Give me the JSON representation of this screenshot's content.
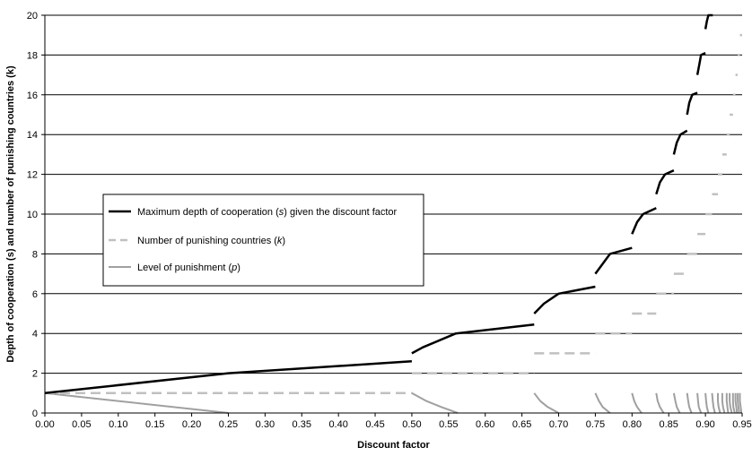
{
  "chart_data": {
    "type": "line",
    "xlabel": "Discount factor",
    "ylabel": "Depth of cooperation (s) and number of punishing countries (k)",
    "xlim": [
      0.0,
      0.95
    ],
    "ylim": [
      0,
      20
    ],
    "xticks": [
      0.0,
      0.05,
      0.1,
      0.15,
      0.2,
      0.25,
      0.3,
      0.35,
      0.4,
      0.45,
      0.5,
      0.55,
      0.6,
      0.65,
      0.7,
      0.75,
      0.8,
      0.85,
      0.9,
      0.95
    ],
    "xtick_labels": [
      "0.00",
      "0.05",
      "0.10",
      "0.15",
      "0.20",
      "0.25",
      "0.30",
      "0.35",
      "0.40",
      "0.45",
      "0.50",
      "0.55",
      "0.60",
      "0.65",
      "0.70",
      "0.75",
      "0.80",
      "0.85",
      "0.90",
      "0.95"
    ],
    "yticks": [
      0,
      2,
      4,
      6,
      8,
      10,
      12,
      14,
      16,
      18,
      20
    ],
    "ytick_labels": [
      "0",
      "2",
      "4",
      "6",
      "8",
      "10",
      "12",
      "14",
      "16",
      "18",
      "20"
    ],
    "grid": "horizontal",
    "legend_placement": "center-left",
    "legend": [
      {
        "pre": "Maximum depth of cooperation (",
        "var": "s",
        "post": ") given the discount factor"
      },
      {
        "pre": "Number of punishing countries (",
        "var": "k",
        "post": ")"
      },
      {
        "pre": "Level of punishment (",
        "var": "p",
        "post": ")"
      }
    ],
    "series": [
      {
        "key": "s",
        "style": "solid",
        "color": "#000000",
        "segments": [
          [
            [
              0.0,
              1.0
            ],
            [
              0.25,
              2.0
            ],
            [
              0.5,
              2.6
            ]
          ],
          [
            [
              0.5,
              3.0
            ],
            [
              0.515,
              3.3
            ],
            [
              0.56,
              4.0
            ],
            [
              0.6667,
              4.45
            ]
          ],
          [
            [
              0.6667,
              5.0
            ],
            [
              0.68,
              5.5
            ],
            [
              0.7,
              6.0
            ],
            [
              0.75,
              6.35
            ]
          ],
          [
            [
              0.75,
              7.0
            ],
            [
              0.76,
              7.5
            ],
            [
              0.77,
              8.0
            ],
            [
              0.8,
              8.3
            ]
          ],
          [
            [
              0.8,
              9.0
            ],
            [
              0.807,
              9.6
            ],
            [
              0.815,
              10.0
            ],
            [
              0.833,
              10.3
            ]
          ],
          [
            [
              0.833,
              11.0
            ],
            [
              0.838,
              11.6
            ],
            [
              0.845,
              12.0
            ],
            [
              0.857,
              12.2
            ]
          ],
          [
            [
              0.857,
              13.0
            ],
            [
              0.861,
              13.6
            ],
            [
              0.866,
              14.0
            ],
            [
              0.875,
              14.2
            ]
          ],
          [
            [
              0.875,
              15.0
            ],
            [
              0.878,
              15.6
            ],
            [
              0.882,
              16.0
            ],
            [
              0.889,
              16.1
            ]
          ],
          [
            [
              0.889,
              17.0
            ],
            [
              0.892,
              17.6
            ],
            [
              0.894,
              18.0
            ],
            [
              0.9,
              18.1
            ]
          ],
          [
            [
              0.9,
              19.3
            ],
            [
              0.902,
              19.7
            ],
            [
              0.904,
              20.0
            ],
            [
              0.91,
              20.0
            ]
          ]
        ]
      },
      {
        "key": "k",
        "style": "dashed",
        "color": "#c0c0c0",
        "segments": [
          [
            [
              0.0,
              1.0
            ],
            [
              0.5,
              1.0
            ]
          ],
          [
            [
              0.5,
              2.0
            ],
            [
              0.6667,
              2.0
            ]
          ],
          [
            [
              0.6667,
              3.0
            ],
            [
              0.75,
              3.0
            ]
          ],
          [
            [
              0.75,
              4.0
            ],
            [
              0.8,
              4.0
            ]
          ],
          [
            [
              0.8,
              5.0
            ],
            [
              0.833,
              5.0
            ]
          ],
          [
            [
              0.833,
              6.0
            ],
            [
              0.857,
              6.0
            ]
          ],
          [
            [
              0.857,
              7.0
            ],
            [
              0.875,
              7.0
            ]
          ],
          [
            [
              0.875,
              8.0
            ],
            [
              0.889,
              8.0
            ]
          ],
          [
            [
              0.889,
              9.0
            ],
            [
              0.9,
              9.0
            ]
          ],
          [
            [
              0.9,
              10.0
            ],
            [
              0.909,
              10.0
            ]
          ],
          [
            [
              0.909,
              11.0
            ],
            [
              0.917,
              11.0
            ]
          ],
          [
            [
              0.917,
              12.0
            ],
            [
              0.923,
              12.0
            ]
          ],
          [
            [
              0.923,
              13.0
            ],
            [
              0.929,
              13.0
            ]
          ],
          [
            [
              0.929,
              14.0
            ],
            [
              0.933,
              14.0
            ]
          ],
          [
            [
              0.933,
              15.0
            ],
            [
              0.9375,
              15.0
            ]
          ],
          [
            [
              0.9375,
              16.0
            ],
            [
              0.941,
              16.0
            ]
          ],
          [
            [
              0.941,
              17.0
            ],
            [
              0.944,
              17.0
            ]
          ],
          [
            [
              0.944,
              18.0
            ],
            [
              0.947,
              18.0
            ]
          ],
          [
            [
              0.947,
              19.0
            ],
            [
              0.95,
              19.0
            ]
          ]
        ]
      },
      {
        "key": "p",
        "style": "solid",
        "color": "#a0a0a0",
        "segments": [
          [
            [
              0.0,
              1.0
            ],
            [
              0.25,
              0.0
            ]
          ],
          [
            [
              0.5,
              1.0
            ],
            [
              0.52,
              0.6
            ],
            [
              0.54,
              0.3
            ],
            [
              0.5625,
              0.0
            ]
          ],
          [
            [
              0.6667,
              1.0
            ],
            [
              0.675,
              0.6
            ],
            [
              0.685,
              0.3
            ],
            [
              0.7,
              0.0
            ]
          ],
          [
            [
              0.75,
              1.0
            ],
            [
              0.755,
              0.6
            ],
            [
              0.76,
              0.3
            ],
            [
              0.77,
              0.0
            ]
          ],
          [
            [
              0.8,
              1.0
            ],
            [
              0.803,
              0.6
            ],
            [
              0.807,
              0.3
            ],
            [
              0.813,
              0.0
            ]
          ],
          [
            [
              0.833,
              1.0
            ],
            [
              0.835,
              0.6
            ],
            [
              0.838,
              0.3
            ],
            [
              0.843,
              0.0
            ]
          ],
          [
            [
              0.857,
              1.0
            ],
            [
              0.859,
              0.6
            ],
            [
              0.861,
              0.3
            ],
            [
              0.865,
              0.0
            ]
          ],
          [
            [
              0.875,
              1.0
            ],
            [
              0.8765,
              0.6
            ],
            [
              0.878,
              0.3
            ],
            [
              0.881,
              0.0
            ]
          ],
          [
            [
              0.889,
              1.0
            ],
            [
              0.89,
              0.6
            ],
            [
              0.891,
              0.3
            ],
            [
              0.894,
              0.0
            ]
          ],
          [
            [
              0.9,
              1.0
            ],
            [
              0.901,
              0.6
            ],
            [
              0.902,
              0.3
            ],
            [
              0.904,
              0.0
            ]
          ],
          [
            [
              0.909,
              1.0
            ],
            [
              0.91,
              0.6
            ],
            [
              0.911,
              0.3
            ],
            [
              0.913,
              0.0
            ]
          ],
          [
            [
              0.917,
              1.0
            ],
            [
              0.917,
              0.6
            ],
            [
              0.918,
              0.3
            ],
            [
              0.92,
              0.0
            ]
          ],
          [
            [
              0.923,
              1.0
            ],
            [
              0.923,
              0.6
            ],
            [
              0.924,
              0.3
            ],
            [
              0.926,
              0.0
            ]
          ],
          [
            [
              0.929,
              1.0
            ],
            [
              0.929,
              0.6
            ],
            [
              0.93,
              0.3
            ],
            [
              0.931,
              0.0
            ]
          ],
          [
            [
              0.933,
              1.0
            ],
            [
              0.933,
              0.6
            ],
            [
              0.934,
              0.3
            ],
            [
              0.936,
              0.0
            ]
          ],
          [
            [
              0.9375,
              1.0
            ],
            [
              0.9375,
              0.6
            ],
            [
              0.938,
              0.3
            ],
            [
              0.94,
              0.0
            ]
          ],
          [
            [
              0.941,
              1.0
            ],
            [
              0.941,
              0.6
            ],
            [
              0.942,
              0.3
            ],
            [
              0.943,
              0.0
            ]
          ],
          [
            [
              0.944,
              1.0
            ],
            [
              0.944,
              0.6
            ],
            [
              0.945,
              0.3
            ],
            [
              0.946,
              0.0
            ]
          ],
          [
            [
              0.947,
              1.0
            ],
            [
              0.947,
              0.6
            ],
            [
              0.948,
              0.3
            ],
            [
              0.949,
              0.0
            ]
          ]
        ]
      }
    ]
  }
}
